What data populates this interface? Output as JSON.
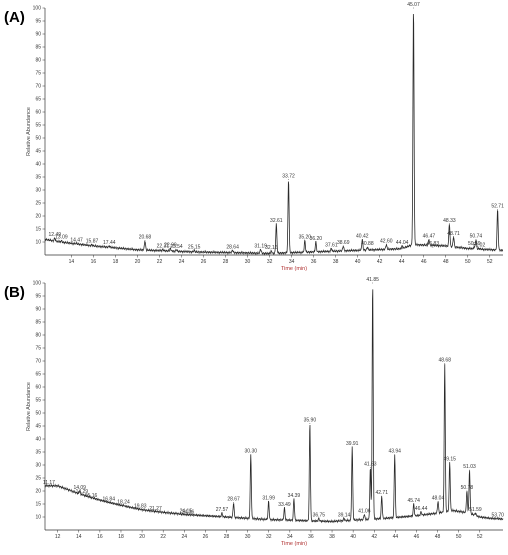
{
  "chart_data": [
    {
      "type": "line",
      "panel_label": "(A)",
      "xlabel": "Time (min)",
      "ylabel": "Relative Abundance",
      "xlim": [
        11.6,
        53.2
      ],
      "ylim": [
        5,
        100
      ],
      "x_ticks": [
        14,
        16,
        18,
        20,
        22,
        24,
        26,
        28,
        30,
        32,
        34,
        36,
        38,
        40,
        42,
        44,
        46,
        48,
        50,
        52
      ],
      "y_ticks": [
        10,
        15,
        20,
        25,
        30,
        35,
        40,
        45,
        50,
        55,
        60,
        65,
        70,
        75,
        80,
        85,
        90,
        95,
        100
      ],
      "baseline": [
        [
          11.6,
          11
        ],
        [
          13,
          10
        ],
        [
          16,
          8.5
        ],
        [
          20,
          7
        ],
        [
          25,
          6.2
        ],
        [
          30,
          5.8
        ],
        [
          32,
          5.6
        ],
        [
          36,
          6.2
        ],
        [
          40,
          6.8
        ],
        [
          44,
          7.4
        ],
        [
          45,
          9
        ],
        [
          48,
          8.5
        ],
        [
          50,
          7.5
        ],
        [
          53.2,
          6.8
        ]
      ],
      "peaks": [
        {
          "rt": "12.49",
          "x": 12.49,
          "y": 11.5
        },
        {
          "rt": "13.09",
          "x": 13.09,
          "y": 10.5
        },
        {
          "rt": "14.47",
          "x": 14.47,
          "y": 9.5
        },
        {
          "rt": "15.87",
          "x": 15.87,
          "y": 9
        },
        {
          "rt": "17.44",
          "x": 17.44,
          "y": 8.5
        },
        {
          "rt": "20.68",
          "x": 20.68,
          "y": 10.5
        },
        {
          "rt": "22.31",
          "x": 22.31,
          "y": 7.2
        },
        {
          "rt": "22.99",
          "x": 22.99,
          "y": 7.5
        },
        {
          "rt": "23.54",
          "x": 23.54,
          "y": 7
        },
        {
          "rt": "25.15",
          "x": 25.15,
          "y": 6.8
        },
        {
          "rt": "28.64",
          "x": 28.64,
          "y": 6.8
        },
        {
          "rt": "31.19",
          "x": 31.19,
          "y": 7.2
        },
        {
          "rt": "32.16",
          "x": 32.16,
          "y": 6.5
        },
        {
          "rt": "32.61",
          "x": 32.61,
          "y": 17
        },
        {
          "rt": "33.72",
          "x": 33.72,
          "y": 34
        },
        {
          "rt": "35.20",
          "x": 35.2,
          "y": 10.5
        },
        {
          "rt": "36.20",
          "x": 36.2,
          "y": 10
        },
        {
          "rt": "37.61",
          "x": 37.61,
          "y": 7.5
        },
        {
          "rt": "38.69",
          "x": 38.69,
          "y": 8.5
        },
        {
          "rt": "40.42",
          "x": 40.42,
          "y": 11
        },
        {
          "rt": "40.88",
          "x": 40.88,
          "y": 8
        },
        {
          "rt": "42.60",
          "x": 42.6,
          "y": 9
        },
        {
          "rt": "44.04",
          "x": 44.04,
          "y": 8.5
        },
        {
          "rt": "45.07",
          "x": 45.07,
          "y": 100
        },
        {
          "rt": "46.47",
          "x": 46.47,
          "y": 11
        },
        {
          "rt": "46.83",
          "x": 46.83,
          "y": 8
        },
        {
          "rt": "48.33",
          "x": 48.33,
          "y": 17
        },
        {
          "rt": "48.71",
          "x": 48.71,
          "y": 12
        },
        {
          "rt": "50.59",
          "x": 50.59,
          "y": 8
        },
        {
          "rt": "50.74",
          "x": 50.74,
          "y": 11
        },
        {
          "rt": "51.02",
          "x": 51.02,
          "y": 7.5
        },
        {
          "rt": "52.71",
          "x": 52.71,
          "y": 22.5
        }
      ]
    },
    {
      "type": "line",
      "panel_label": "(B)",
      "xlabel": "Time (min)",
      "ylabel": "Relative Abundance",
      "xlim": [
        10.8,
        54.2
      ],
      "ylim": [
        5,
        100
      ],
      "x_ticks": [
        12,
        14,
        16,
        18,
        20,
        22,
        24,
        26,
        28,
        30,
        32,
        34,
        36,
        38,
        40,
        42,
        44,
        46,
        48,
        50,
        52
      ],
      "y_ticks": [
        10,
        15,
        20,
        25,
        30,
        35,
        40,
        45,
        50,
        55,
        60,
        65,
        70,
        75,
        80,
        85,
        90,
        95,
        100
      ],
      "baseline": [
        [
          10.8,
          22
        ],
        [
          12,
          22
        ],
        [
          14,
          19
        ],
        [
          16,
          16.5
        ],
        [
          18,
          14.5
        ],
        [
          20,
          12.8
        ],
        [
          22,
          11.8
        ],
        [
          24,
          11
        ],
        [
          26,
          10.5
        ],
        [
          28,
          10
        ],
        [
          30,
          9.5
        ],
        [
          32,
          9
        ],
        [
          34,
          8.8
        ],
        [
          36,
          8.5
        ],
        [
          38,
          8.3
        ],
        [
          40,
          8.8
        ],
        [
          42,
          9.2
        ],
        [
          44,
          9.8
        ],
        [
          46,
          10.5
        ],
        [
          48,
          11.5
        ],
        [
          49.5,
          12.5
        ],
        [
          51,
          11.5
        ],
        [
          52,
          10
        ],
        [
          53,
          9.5
        ],
        [
          54.2,
          9.2
        ]
      ],
      "peaks": [
        {
          "rt": "11.17",
          "x": 11.17,
          "y": 22
        },
        {
          "rt": "14.09",
          "x": 14.09,
          "y": 20
        },
        {
          "rt": "14.29",
          "x": 14.29,
          "y": 18.5
        },
        {
          "rt": "15.16",
          "x": 15.16,
          "y": 17
        },
        {
          "rt": "16.84",
          "x": 16.84,
          "y": 15.5
        },
        {
          "rt": "18.24",
          "x": 18.24,
          "y": 14.5
        },
        {
          "rt": "19.83",
          "x": 19.83,
          "y": 12.8
        },
        {
          "rt": "21.27",
          "x": 21.27,
          "y": 12
        },
        {
          "rt": "24.15",
          "x": 24.15,
          "y": 11
        },
        {
          "rt": "24.36",
          "x": 24.36,
          "y": 10.5
        },
        {
          "rt": "27.57",
          "x": 27.57,
          "y": 11.5
        },
        {
          "rt": "28.67",
          "x": 28.67,
          "y": 15.5
        },
        {
          "rt": "30.30",
          "x": 30.3,
          "y": 34
        },
        {
          "rt": "31.99",
          "x": 31.99,
          "y": 16
        },
        {
          "rt": "33.49",
          "x": 33.49,
          "y": 13.5
        },
        {
          "rt": "34.39",
          "x": 34.39,
          "y": 17
        },
        {
          "rt": "35.90",
          "x": 35.9,
          "y": 46
        },
        {
          "rt": "36.75",
          "x": 36.75,
          "y": 9.5
        },
        {
          "rt": "39.14",
          "x": 39.14,
          "y": 9.5
        },
        {
          "rt": "39.91",
          "x": 39.91,
          "y": 37
        },
        {
          "rt": "41.06",
          "x": 41.06,
          "y": 11
        },
        {
          "rt": "41.63",
          "x": 41.63,
          "y": 29
        },
        {
          "rt": "41.85",
          "x": 41.85,
          "y": 100
        },
        {
          "rt": "42.71",
          "x": 42.71,
          "y": 18
        },
        {
          "rt": "43.94",
          "x": 43.94,
          "y": 34
        },
        {
          "rt": "45.74",
          "x": 45.74,
          "y": 15
        },
        {
          "rt": "46.44",
          "x": 46.44,
          "y": 12
        },
        {
          "rt": "48.04",
          "x": 48.04,
          "y": 16
        },
        {
          "rt": "48.68",
          "x": 48.68,
          "y": 69
        },
        {
          "rt": "49.15",
          "x": 49.15,
          "y": 31
        },
        {
          "rt": "50.78",
          "x": 50.78,
          "y": 20
        },
        {
          "rt": "51.03",
          "x": 51.03,
          "y": 28
        },
        {
          "rt": "51.59",
          "x": 51.59,
          "y": 11.5
        },
        {
          "rt": "53.70",
          "x": 53.7,
          "y": 9.5
        }
      ]
    }
  ]
}
